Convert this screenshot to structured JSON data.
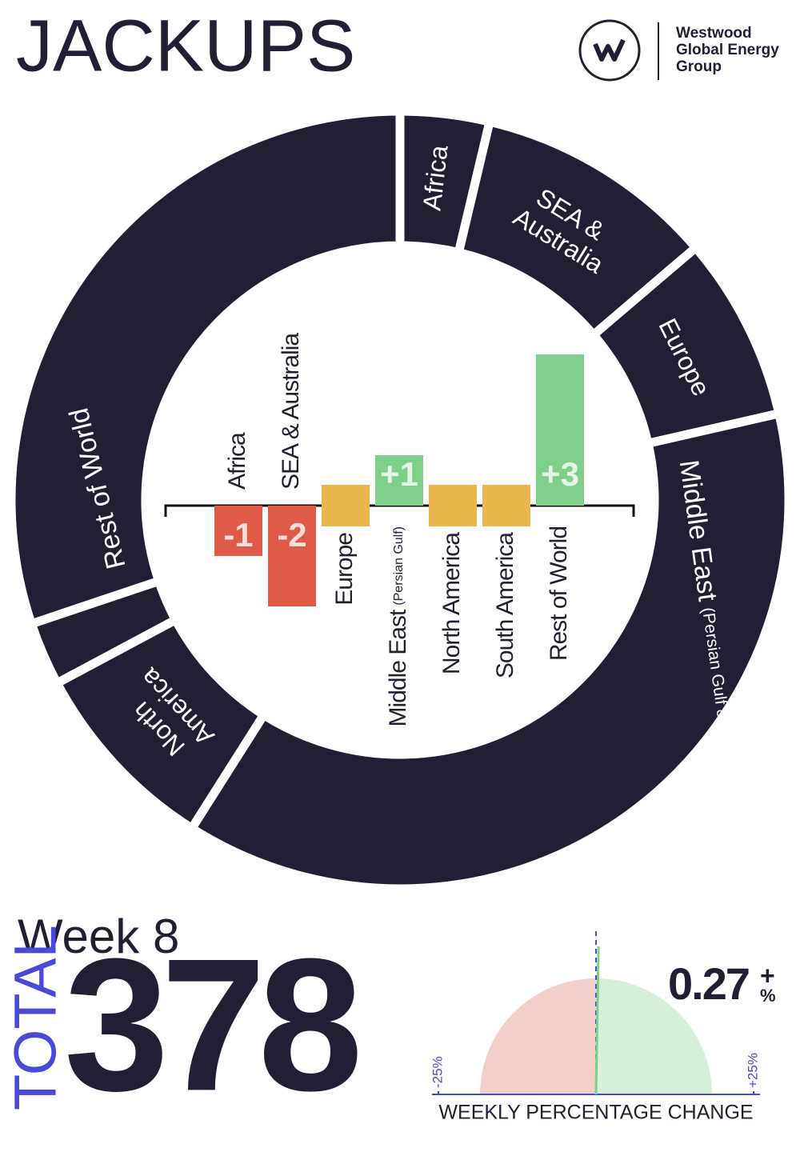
{
  "header": {
    "title": "JACKUPS",
    "logo_lines": [
      "Westwood",
      "Global Energy",
      "Group"
    ]
  },
  "chart_data": [
    {
      "type": "donut",
      "categories": [
        "Africa",
        "SEA & Australia",
        "Europe",
        "Middle East",
        "North America",
        null,
        "Rest of World"
      ],
      "notes": [
        null,
        null,
        null,
        "(Persian Gulf & Red Sea)",
        null,
        null,
        null
      ],
      "values": [
        14,
        38,
        29,
        142,
        31,
        10,
        114
      ],
      "color": "#221f35"
    },
    {
      "type": "bar",
      "categories": [
        "Africa",
        "SEA & Australia",
        "Europe",
        "Middle East",
        "North America",
        "South America",
        "Rest of World"
      ],
      "notes": [
        null,
        null,
        null,
        "(Persian Gulf)",
        null,
        null,
        null
      ],
      "values": [
        -1,
        -2,
        0,
        1,
        0,
        0,
        3
      ],
      "value_labels": [
        "-1",
        "-2",
        null,
        "+1",
        null,
        null,
        "+3"
      ],
      "colors": [
        "#e05a48",
        "#e05a48",
        "#ecb64e",
        "#7dcf8a",
        "#ecb64e",
        "#ecb64e",
        "#7dcf8a"
      ]
    },
    {
      "type": "gauge",
      "value": 0.27,
      "sign": "+",
      "unit": "%",
      "xlim": [
        -25,
        25
      ],
      "xticks": [
        {
          "value": -25,
          "label": "-25%"
        },
        {
          "value": 25,
          "label": "+25%"
        }
      ],
      "xlabel": "WEEKLY PERCENTAGE CHANGE",
      "colors": {
        "negative": "#f3cfc9",
        "positive": "#d8efd9",
        "needle": "#7dcf8a",
        "axis": "#4a4ad8"
      }
    }
  ],
  "summary": {
    "week": "Week 8",
    "total_label": "TOTAL",
    "total": 378
  }
}
